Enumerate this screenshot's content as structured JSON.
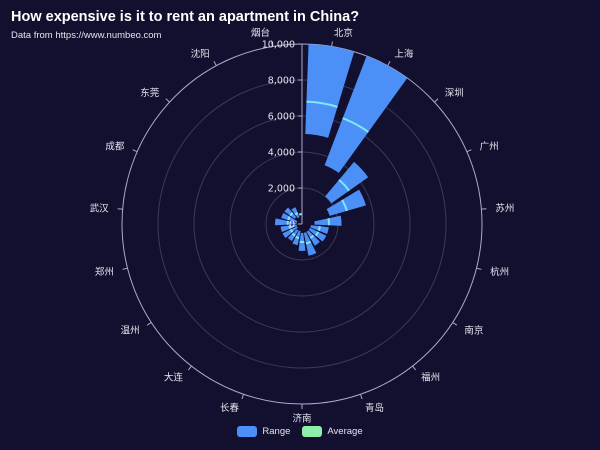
{
  "header": {
    "title": "How expensive is it to rent an apartment in China?",
    "subtitle": "Data from https://www.numbeo.com"
  },
  "colors": {
    "background": "#12102e",
    "range": "#4b8ff7",
    "average": "#7ee8f7",
    "legend_average": "#8ef0a8",
    "axis": "#aaaacc",
    "grid": "#3a3a55",
    "text": "#e4e4ee"
  },
  "chart_data": {
    "type": "polar-bar",
    "title": "How expensive is it to rent an apartment in China?",
    "subtitle": "Data from https://www.numbeo.com",
    "radial_axis": {
      "min": 0,
      "max": 10000,
      "ticks": [
        0,
        2000,
        4000,
        6000,
        8000,
        10000
      ],
      "tick_labels": [
        "0",
        "2,000",
        "4,000",
        "6,000",
        "8,000",
        "10,000"
      ]
    },
    "grid": true,
    "legend_position": "bottom",
    "categories": [
      "北京",
      "上海",
      "深圳",
      "广州",
      "苏州",
      "杭州",
      "南京",
      "福州",
      "青岛",
      "济南",
      "长春",
      "大连",
      "温州",
      "郑州",
      "武汉",
      "成都",
      "东莞",
      "沈阳",
      "烟台"
    ],
    "series": [
      {
        "name": "Range",
        "low": [
          5000,
          3500,
          2000,
          1600,
          700,
          500,
          500,
          500,
          500,
          500,
          400,
          400,
          300,
          300,
          300,
          300,
          500,
          400,
          500
        ],
        "high": [
          10000,
          10000,
          4500,
          3700,
          2200,
          1500,
          1500,
          1400,
          1800,
          1500,
          1200,
          1100,
          1200,
          1200,
          1500,
          1200,
          1200,
          1000,
          600
        ]
      },
      {
        "name": "Average",
        "values": [
          6800,
          6300,
          3200,
          2600,
          1500,
          1000,
          1000,
          900,
          1100,
          1000,
          800,
          750,
          700,
          700,
          800,
          800,
          800,
          650,
          550
        ]
      }
    ]
  },
  "legend": {
    "items": [
      {
        "label": "Range"
      },
      {
        "label": "Average"
      }
    ]
  }
}
